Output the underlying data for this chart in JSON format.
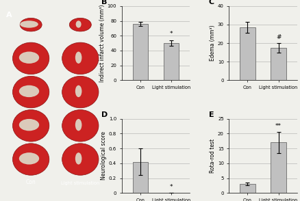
{
  "panel_A_label": "A",
  "panel_B_label": "B",
  "panel_C_label": "C",
  "panel_D_label": "D",
  "panel_E_label": "E",
  "categories": [
    "Con",
    "Light stimulation"
  ],
  "B_values": [
    76,
    50
  ],
  "B_errors": [
    3,
    4
  ],
  "B_ylabel": "Indirect infarct volume (mm³)",
  "B_ylim": [
    0,
    100
  ],
  "B_yticks": [
    0,
    20,
    40,
    60,
    80,
    100
  ],
  "B_sig": "*",
  "B_sig_bar": 1,
  "C_values": [
    28.5,
    17.5
  ],
  "C_errors": [
    3,
    2.5
  ],
  "C_ylabel": "Edema (mm³)",
  "C_ylim": [
    0,
    40
  ],
  "C_yticks": [
    0,
    10,
    20,
    30,
    40
  ],
  "C_sig": "#",
  "C_sig_bar": 1,
  "D_values": [
    0.42,
    0.0
  ],
  "D_errors": [
    0.18,
    0.0
  ],
  "D_ylabel": "Neurological score",
  "D_ylim": [
    0,
    1.0
  ],
  "D_yticks": [
    0,
    0.2,
    0.4,
    0.6,
    0.8,
    1.0
  ],
  "D_sig": "*",
  "D_sig_bar": 1,
  "E_values": [
    3.0,
    17.0
  ],
  "E_errors": [
    0.5,
    3.5
  ],
  "E_ylabel": "Rota-rod test",
  "E_ylim": [
    0,
    25
  ],
  "E_yticks": [
    0,
    5,
    10,
    15,
    20,
    25
  ],
  "E_sig": "**",
  "E_sig_bar": 1,
  "bar_color": "#C0C0C0",
  "bar_edge_color": "#555555",
  "bg_color": "#f0f0eb",
  "panel_bg": "#000000",
  "label_fontsize": 6,
  "tick_fontsize": 5,
  "ylabel_fontsize": 5.5,
  "title_fontsize": 8,
  "bar_width": 0.5,
  "x_label_rotation": 0,
  "con_label": "Con",
  "light_label": "Light stimulation"
}
